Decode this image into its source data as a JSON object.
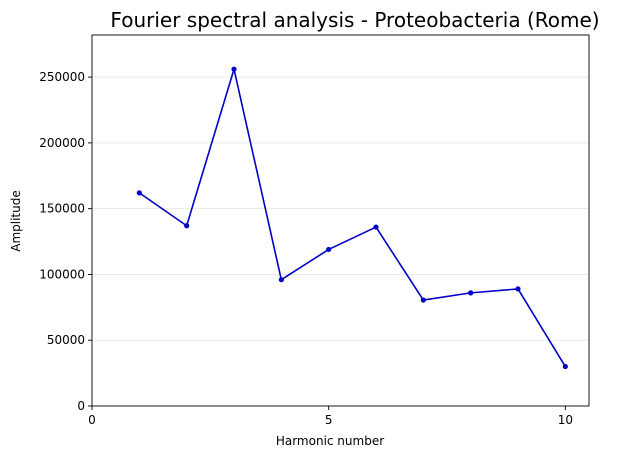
{
  "chart_data": {
    "type": "line",
    "title": "Fourier spectral analysis - Proteobacteria (Rome)",
    "xlabel": "Harmonic number",
    "ylabel": "Amplitude",
    "xlim": [
      0,
      10.5
    ],
    "ylim": [
      0,
      282000
    ],
    "xticks": [
      0,
      5,
      10
    ],
    "yticks": [
      0,
      50000,
      100000,
      150000,
      200000,
      250000
    ],
    "ytick_labels": [
      "0",
      "50000",
      "100000",
      "150000",
      "200000",
      "250000"
    ],
    "grid": "horizontal",
    "series": [
      {
        "x": [
          1,
          2,
          3,
          4,
          5,
          6,
          7,
          8,
          9,
          10
        ],
        "values": [
          162000,
          137000,
          256000,
          96000,
          119000,
          136000,
          80500,
          86000,
          89000,
          30000
        ],
        "color": "#0000c8",
        "marker": "circle"
      }
    ]
  },
  "colors": {
    "line": "#0000c8",
    "grid": "#e6e6e6",
    "axis": "#000000"
  }
}
